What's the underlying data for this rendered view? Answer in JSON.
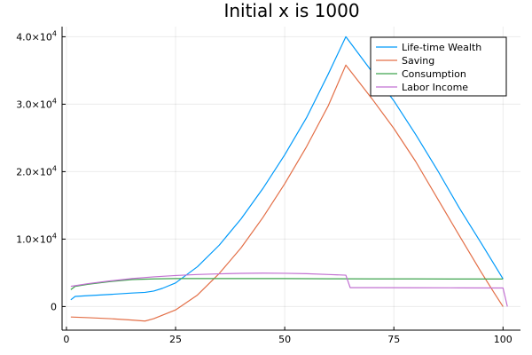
{
  "chart_data": {
    "type": "line",
    "title": "Initial x is 1000",
    "xlabel": "",
    "ylabel": "",
    "xlim": [
      -1,
      104
    ],
    "ylim": [
      -3500,
      41500
    ],
    "xticks": [
      0,
      25,
      50,
      75,
      100
    ],
    "yticks": [
      {
        "value": 0,
        "label": "0",
        "sup": ""
      },
      {
        "value": 10000,
        "label": "1.0×10",
        "sup": "4"
      },
      {
        "value": 20000,
        "label": "2.0×10",
        "sup": "4"
      },
      {
        "value": 30000,
        "label": "3.0×10",
        "sup": "4"
      },
      {
        "value": 40000,
        "label": "4.0×10",
        "sup": "4"
      }
    ],
    "grid": true,
    "legend_position": "top-right",
    "series": [
      {
        "name": "Life-time Wealth",
        "color": "#009AFA",
        "points": [
          [
            1,
            1000
          ],
          [
            2,
            1500
          ],
          [
            5,
            1620
          ],
          [
            10,
            1800
          ],
          [
            15,
            2000
          ],
          [
            18,
            2100
          ],
          [
            20,
            2300
          ],
          [
            22,
            2700
          ],
          [
            25,
            3500
          ],
          [
            30,
            5900
          ],
          [
            35,
            9100
          ],
          [
            40,
            13000
          ],
          [
            45,
            17500
          ],
          [
            50,
            22500
          ],
          [
            55,
            28000
          ],
          [
            60,
            34500
          ],
          [
            64,
            40000
          ],
          [
            70,
            34800
          ],
          [
            75,
            30500
          ],
          [
            80,
            25500
          ],
          [
            85,
            20200
          ],
          [
            90,
            14600
          ],
          [
            95,
            9400
          ],
          [
            100,
            4100
          ]
        ]
      },
      {
        "name": "Saving",
        "color": "#E36F47",
        "points": [
          [
            1,
            -1550
          ],
          [
            5,
            -1650
          ],
          [
            10,
            -1800
          ],
          [
            15,
            -2000
          ],
          [
            18,
            -2150
          ],
          [
            20,
            -1800
          ],
          [
            25,
            -500
          ],
          [
            30,
            1700
          ],
          [
            35,
            4900
          ],
          [
            40,
            8700
          ],
          [
            45,
            13200
          ],
          [
            50,
            18200
          ],
          [
            55,
            23700
          ],
          [
            60,
            29800
          ],
          [
            64,
            35800
          ],
          [
            70,
            30800
          ],
          [
            75,
            26400
          ],
          [
            80,
            21500
          ],
          [
            85,
            16000
          ],
          [
            90,
            10500
          ],
          [
            95,
            5100
          ],
          [
            98,
            2000
          ],
          [
            100,
            0
          ]
        ]
      },
      {
        "name": "Consumption",
        "color": "#3EA44E",
        "points": [
          [
            1,
            2500
          ],
          [
            2,
            3000
          ],
          [
            5,
            3300
          ],
          [
            10,
            3700
          ],
          [
            15,
            4000
          ],
          [
            20,
            4100
          ],
          [
            25,
            4150
          ],
          [
            30,
            4150
          ],
          [
            40,
            4150
          ],
          [
            50,
            4150
          ],
          [
            60,
            4120
          ],
          [
            70,
            4100
          ],
          [
            80,
            4100
          ],
          [
            90,
            4080
          ],
          [
            100,
            4080
          ]
        ]
      },
      {
        "name": "Labor Income",
        "color": "#C271D2",
        "points": [
          [
            1,
            3000
          ],
          [
            5,
            3400
          ],
          [
            10,
            3800
          ],
          [
            15,
            4150
          ],
          [
            20,
            4400
          ],
          [
            25,
            4600
          ],
          [
            30,
            4750
          ],
          [
            35,
            4850
          ],
          [
            40,
            4920
          ],
          [
            45,
            4950
          ],
          [
            50,
            4930
          ],
          [
            55,
            4870
          ],
          [
            60,
            4750
          ],
          [
            64,
            4650
          ],
          [
            65,
            2800
          ],
          [
            70,
            2800
          ],
          [
            80,
            2780
          ],
          [
            90,
            2770
          ],
          [
            100,
            2750
          ],
          [
            101,
            0
          ]
        ]
      }
    ]
  }
}
